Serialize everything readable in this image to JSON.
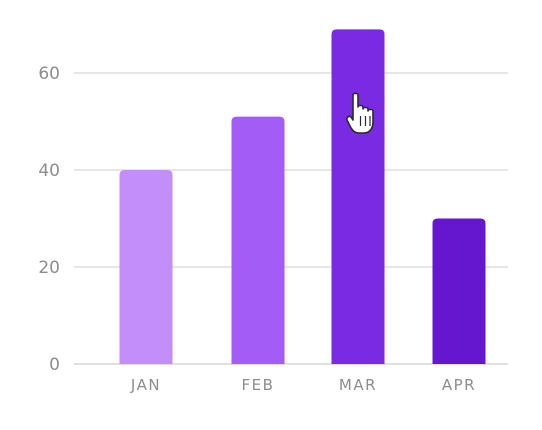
{
  "chart_data": {
    "type": "bar",
    "categories": [
      "JAN",
      "FEB",
      "MAR",
      "APR"
    ],
    "values": [
      40,
      51,
      69,
      30
    ],
    "bar_colors": [
      "#c38ef9",
      "#a35cf5",
      "#7b2ae4",
      "#6517cf"
    ],
    "title": "",
    "xlabel": "",
    "ylabel": "",
    "ylim": [
      0,
      72
    ],
    "yticks": [
      0,
      20,
      40,
      60
    ],
    "grid": true,
    "gridline_color": "#e6e6e6",
    "tick_label_color": "#8d8d8d",
    "legend": "none"
  },
  "cursor": {
    "icon": "hand-pointer-icon",
    "hover_category": "MAR"
  }
}
